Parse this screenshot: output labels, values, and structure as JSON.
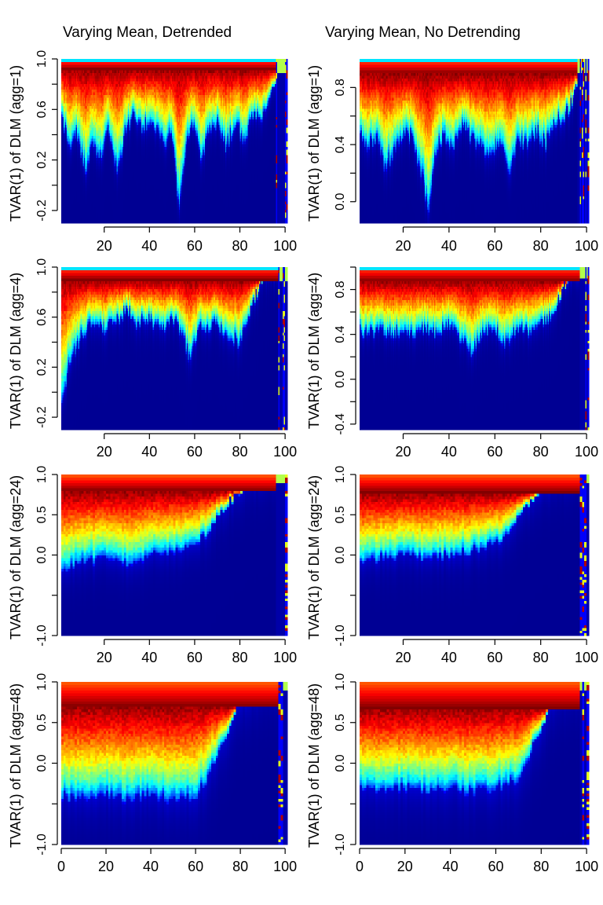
{
  "column_titles": [
    "Varying Mean, Detrended",
    "Varying Mean, No Detrending"
  ],
  "colors": {
    "scale": [
      "#00007f",
      "#0000ff",
      "#007fff",
      "#00ffff",
      "#7fff7f",
      "#ffff00",
      "#ff7f00",
      "#ff0000",
      "#7f0000"
    ],
    "axis": "#000000"
  },
  "chart_data": [
    {
      "type": "heatmap",
      "panel": "row1-left",
      "title": "Varying Mean, Detrended",
      "xlabel": "",
      "ylabel": "TVAR(1) of DLM (agg=1)",
      "xlim": [
        1,
        101
      ],
      "ylim": [
        -0.3,
        1.0
      ],
      "x_ticks": [
        20,
        40,
        60,
        80,
        100
      ],
      "x_tick_labels": [
        "20",
        "40",
        "60",
        "80",
        "100"
      ],
      "y_ticks": [
        -0.2,
        0.2,
        0.6,
        1.0
      ],
      "y_tick_labels": [
        "-0.2",
        "0.2",
        "0.6",
        "1.0"
      ],
      "y_minor_ticks": [
        0.0,
        0.4,
        0.8
      ],
      "cells_x": 200,
      "cells_y": 60,
      "density_peak": 0.92,
      "density_width": 0.06,
      "lower_profile": [
        [
          0,
          0.55
        ],
        [
          3,
          0.42
        ],
        [
          5,
          0.3
        ],
        [
          8,
          0.4
        ],
        [
          12,
          0.1
        ],
        [
          15,
          0.35
        ],
        [
          18,
          0.2
        ],
        [
          22,
          0.45
        ],
        [
          26,
          0.1
        ],
        [
          29,
          0.4
        ],
        [
          33,
          0.55
        ],
        [
          37,
          0.45
        ],
        [
          40,
          0.5
        ],
        [
          44,
          0.45
        ],
        [
          47,
          0.3
        ],
        [
          50,
          0.45
        ],
        [
          53,
          -0.2
        ],
        [
          57,
          0.4
        ],
        [
          60,
          0.5
        ],
        [
          63,
          0.2
        ],
        [
          66,
          0.4
        ],
        [
          70,
          0.5
        ],
        [
          74,
          0.3
        ],
        [
          78,
          0.5
        ],
        [
          82,
          0.35
        ],
        [
          86,
          0.55
        ],
        [
          90,
          0.55
        ],
        [
          94,
          0.7
        ],
        [
          97,
          0.96
        ],
        [
          100,
          0.96
        ]
      ],
      "transition_x": 96,
      "end_x": 101
    },
    {
      "type": "heatmap",
      "panel": "row1-right",
      "title": "Varying Mean, No Detrending",
      "xlabel": "",
      "ylabel": "TVAR(1) of DLM (agg=1)",
      "xlim": [
        1,
        101
      ],
      "ylim": [
        -0.15,
        1.0
      ],
      "x_ticks": [
        20,
        40,
        60,
        80,
        100
      ],
      "x_tick_labels": [
        "20",
        "40",
        "60",
        "80",
        "100"
      ],
      "y_ticks": [
        0.0,
        0.4,
        0.8
      ],
      "y_tick_labels": [
        "0.0",
        "0.4",
        "0.8"
      ],
      "y_minor_ticks": [
        0.2,
        0.6
      ],
      "cells_x": 200,
      "cells_y": 60,
      "density_peak": 0.9,
      "density_width": 0.06,
      "lower_profile": [
        [
          0,
          0.5
        ],
        [
          4,
          0.4
        ],
        [
          8,
          0.45
        ],
        [
          12,
          0.25
        ],
        [
          16,
          0.35
        ],
        [
          20,
          0.5
        ],
        [
          24,
          0.45
        ],
        [
          28,
          0.2
        ],
        [
          31,
          -0.05
        ],
        [
          34,
          0.35
        ],
        [
          38,
          0.45
        ],
        [
          42,
          0.4
        ],
        [
          46,
          0.55
        ],
        [
          50,
          0.45
        ],
        [
          54,
          0.4
        ],
        [
          58,
          0.3
        ],
        [
          62,
          0.45
        ],
        [
          66,
          0.2
        ],
        [
          70,
          0.45
        ],
        [
          74,
          0.4
        ],
        [
          78,
          0.5
        ],
        [
          82,
          0.4
        ],
        [
          86,
          0.55
        ],
        [
          90,
          0.6
        ],
        [
          94,
          0.7
        ],
        [
          97,
          0.95
        ],
        [
          100,
          0.95
        ]
      ],
      "transition_x": 96,
      "end_x": 101
    },
    {
      "type": "heatmap",
      "panel": "row2-left",
      "title": "",
      "xlabel": "",
      "ylabel": "TVAR(1) of DLM (agg=4)",
      "xlim": [
        1,
        101
      ],
      "ylim": [
        -0.3,
        1.0
      ],
      "x_ticks": [
        20,
        40,
        60,
        80,
        100
      ],
      "x_tick_labels": [
        "20",
        "40",
        "60",
        "80",
        "100"
      ],
      "y_ticks": [
        -0.2,
        0.2,
        0.6,
        1.0
      ],
      "y_tick_labels": [
        "-0.2",
        "0.2",
        "0.6",
        "1.0"
      ],
      "y_minor_ticks": [
        0.0,
        0.4,
        0.8
      ],
      "cells_x": 200,
      "cells_y": 60,
      "density_peak": 0.9,
      "density_width": 0.07,
      "lower_profile": [
        [
          0,
          -0.2
        ],
        [
          5,
          0.25
        ],
        [
          10,
          0.45
        ],
        [
          15,
          0.55
        ],
        [
          20,
          0.5
        ],
        [
          25,
          0.55
        ],
        [
          30,
          0.65
        ],
        [
          35,
          0.55
        ],
        [
          40,
          0.6
        ],
        [
          45,
          0.5
        ],
        [
          50,
          0.6
        ],
        [
          55,
          0.45
        ],
        [
          58,
          0.25
        ],
        [
          62,
          0.55
        ],
        [
          66,
          0.5
        ],
        [
          70,
          0.55
        ],
        [
          75,
          0.45
        ],
        [
          80,
          0.4
        ],
        [
          83,
          0.55
        ],
        [
          87,
          0.75
        ],
        [
          90,
          0.92
        ],
        [
          94,
          0.96
        ],
        [
          100,
          0.96
        ]
      ],
      "transition_x": 97,
      "end_x": 101
    },
    {
      "type": "heatmap",
      "panel": "row2-right",
      "title": "",
      "xlabel": "",
      "ylabel": "TVAR(1) of DLM (agg=4)",
      "xlim": [
        1,
        101
      ],
      "ylim": [
        -0.45,
        1.0
      ],
      "x_ticks": [
        20,
        40,
        60,
        80,
        100
      ],
      "x_tick_labels": [
        "20",
        "40",
        "60",
        "80",
        "100"
      ],
      "y_ticks": [
        -0.4,
        0.0,
        0.4,
        0.8
      ],
      "y_tick_labels": [
        "-0.4",
        "0.0",
        "0.4",
        "0.8"
      ],
      "y_minor_ticks": [
        -0.2,
        0.2,
        0.6,
        1.0
      ],
      "cells_x": 200,
      "cells_y": 60,
      "density_peak": 0.88,
      "density_width": 0.07,
      "lower_profile": [
        [
          0,
          0.45
        ],
        [
          5,
          0.4
        ],
        [
          10,
          0.45
        ],
        [
          15,
          0.4
        ],
        [
          20,
          0.45
        ],
        [
          25,
          0.4
        ],
        [
          30,
          0.45
        ],
        [
          35,
          0.4
        ],
        [
          40,
          0.5
        ],
        [
          45,
          0.35
        ],
        [
          50,
          0.25
        ],
        [
          55,
          0.4
        ],
        [
          60,
          0.45
        ],
        [
          64,
          0.3
        ],
        [
          68,
          0.4
        ],
        [
          72,
          0.45
        ],
        [
          76,
          0.4
        ],
        [
          80,
          0.5
        ],
        [
          84,
          0.55
        ],
        [
          88,
          0.7
        ],
        [
          92,
          0.9
        ],
        [
          96,
          0.96
        ],
        [
          100,
          0.96
        ]
      ],
      "transition_x": 97,
      "end_x": 101
    },
    {
      "type": "heatmap",
      "panel": "row3-left",
      "title": "",
      "xlabel": "",
      "ylabel": "TVAR(1) of DLM (agg=24)",
      "xlim": [
        1,
        101
      ],
      "ylim": [
        -1.0,
        1.0
      ],
      "x_ticks": [
        20,
        40,
        60,
        80,
        100
      ],
      "x_tick_labels": [
        "20",
        "40",
        "60",
        "80",
        "100"
      ],
      "y_ticks": [
        -1.0,
        0.0,
        0.5,
        1.0
      ],
      "y_tick_labels": [
        "-1.0",
        "0.0",
        "0.5",
        "1.0"
      ],
      "y_minor_ticks": [
        -0.5
      ],
      "cells_x": 101,
      "cells_y": 60,
      "density_peak": 0.8,
      "density_width": 0.15,
      "lower_profile": [
        [
          0,
          -0.2
        ],
        [
          10,
          -0.1
        ],
        [
          20,
          -0.05
        ],
        [
          30,
          -0.1
        ],
        [
          40,
          0.0
        ],
        [
          50,
          0.05
        ],
        [
          60,
          0.15
        ],
        [
          65,
          0.25
        ],
        [
          70,
          0.45
        ],
        [
          75,
          0.65
        ],
        [
          80,
          0.8
        ],
        [
          85,
          0.88
        ],
        [
          90,
          0.93
        ],
        [
          95,
          0.96
        ],
        [
          100,
          0.96
        ]
      ],
      "transition_x": 96,
      "end_x": 101
    },
    {
      "type": "heatmap",
      "panel": "row3-right",
      "title": "",
      "xlabel": "",
      "ylabel": "TVAR(1) of DLM (agg=24)",
      "xlim": [
        1,
        101
      ],
      "ylim": [
        -1.0,
        1.0
      ],
      "x_ticks": [
        20,
        40,
        60,
        80,
        100
      ],
      "x_tick_labels": [
        "20",
        "40",
        "60",
        "80",
        "100"
      ],
      "y_ticks": [
        -1.0,
        0.0,
        0.5,
        1.0
      ],
      "y_tick_labels": [
        "-1.0",
        "0.0",
        "0.5",
        "1.0"
      ],
      "y_minor_ticks": [
        -0.5
      ],
      "cells_x": 101,
      "cells_y": 60,
      "density_peak": 0.78,
      "density_width": 0.15,
      "lower_profile": [
        [
          0,
          -0.1
        ],
        [
          10,
          -0.05
        ],
        [
          20,
          0.0
        ],
        [
          30,
          -0.05
        ],
        [
          40,
          0.0
        ],
        [
          50,
          0.05
        ],
        [
          60,
          0.15
        ],
        [
          65,
          0.25
        ],
        [
          70,
          0.45
        ],
        [
          75,
          0.65
        ],
        [
          80,
          0.8
        ],
        [
          85,
          0.88
        ],
        [
          90,
          0.93
        ],
        [
          95,
          0.96
        ],
        [
          100,
          0.96
        ]
      ],
      "transition_x": 97,
      "end_x": 101
    },
    {
      "type": "heatmap",
      "panel": "row4-left",
      "title": "",
      "xlabel": "",
      "ylabel": "TVAR(1) of DLM (agg=48)",
      "xlim": [
        0,
        101
      ],
      "ylim": [
        -1.0,
        1.0
      ],
      "x_ticks": [
        0,
        20,
        40,
        60,
        80,
        100
      ],
      "x_tick_labels": [
        "0",
        "20",
        "40",
        "60",
        "80",
        "100"
      ],
      "y_ticks": [
        -1.0,
        0.0,
        0.5,
        1.0
      ],
      "y_tick_labels": [
        "-1.0",
        "0.0",
        "0.5",
        "1.0"
      ],
      "y_minor_ticks": [
        -0.5
      ],
      "cells_x": 101,
      "cells_y": 60,
      "density_peak": 0.7,
      "density_width": 0.22,
      "lower_profile": [
        [
          0,
          -0.4
        ],
        [
          10,
          -0.45
        ],
        [
          20,
          -0.4
        ],
        [
          30,
          -0.45
        ],
        [
          40,
          -0.4
        ],
        [
          50,
          -0.45
        ],
        [
          60,
          -0.4
        ],
        [
          65,
          -0.2
        ],
        [
          70,
          0.1
        ],
        [
          75,
          0.45
        ],
        [
          80,
          0.75
        ],
        [
          85,
          0.85
        ],
        [
          90,
          0.92
        ],
        [
          95,
          0.96
        ],
        [
          100,
          0.96
        ]
      ],
      "transition_x": 97,
      "end_x": 101
    },
    {
      "type": "heatmap",
      "panel": "row4-right",
      "title": "",
      "xlabel": "",
      "ylabel": "TVAR(1) of DLM (agg=48)",
      "xlim": [
        0,
        101
      ],
      "ylim": [
        -1.0,
        1.0
      ],
      "x_ticks": [
        0,
        20,
        40,
        60,
        80,
        100
      ],
      "x_tick_labels": [
        "0",
        "20",
        "40",
        "60",
        "80",
        "100"
      ],
      "y_ticks": [
        -1.0,
        0.0,
        0.5,
        1.0
      ],
      "y_tick_labels": [
        "-1.0",
        "0.0",
        "0.5",
        "1.0"
      ],
      "y_minor_ticks": [
        -0.5
      ],
      "cells_x": 101,
      "cells_y": 60,
      "density_peak": 0.68,
      "density_width": 0.22,
      "lower_profile": [
        [
          0,
          -0.3
        ],
        [
          10,
          -0.35
        ],
        [
          20,
          -0.3
        ],
        [
          30,
          -0.35
        ],
        [
          40,
          -0.3
        ],
        [
          50,
          -0.35
        ],
        [
          60,
          -0.3
        ],
        [
          70,
          -0.2
        ],
        [
          75,
          0.1
        ],
        [
          80,
          0.45
        ],
        [
          85,
          0.75
        ],
        [
          90,
          0.9
        ],
        [
          95,
          0.96
        ],
        [
          100,
          0.96
        ]
      ],
      "transition_x": 97,
      "end_x": 101
    }
  ]
}
